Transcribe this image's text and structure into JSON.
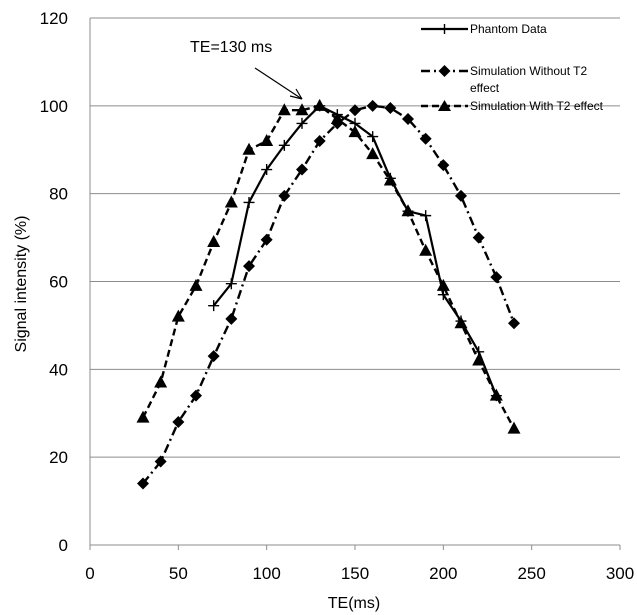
{
  "chart_data": {
    "type": "line",
    "title": "",
    "xlabel": "TE(ms)",
    "ylabel": "Signal intensity (%)",
    "xlim": [
      0,
      300
    ],
    "ylim": [
      0,
      120
    ],
    "xticks": [
      0,
      50,
      100,
      150,
      200,
      250,
      300
    ],
    "yticks": [
      0,
      20,
      40,
      60,
      80,
      100,
      120
    ],
    "grid": "horizontal",
    "legend_position": "top-right",
    "annotation": {
      "text": "TE=130  ms",
      "points_to": {
        "x": 130,
        "y": 100
      }
    },
    "series": [
      {
        "name": "Phantom Data",
        "marker": "plus",
        "line": "solid",
        "color": "#000000",
        "x": [
          70,
          80,
          90,
          100,
          110,
          120,
          130,
          140,
          150,
          160,
          170,
          180,
          190,
          200,
          210,
          220,
          230
        ],
        "y": [
          54.5,
          59.5,
          78,
          85.5,
          91,
          96,
          100,
          98,
          96,
          93,
          83.5,
          76,
          75,
          57,
          51,
          44,
          34
        ]
      },
      {
        "name": "Simulation Without T2 effect",
        "marker": "diamond",
        "line": "dashdot",
        "color": "#000000",
        "x": [
          30,
          40,
          50,
          60,
          70,
          80,
          90,
          100,
          110,
          120,
          130,
          140,
          150,
          160,
          170,
          180,
          190,
          200,
          210,
          220,
          230,
          240
        ],
        "y": [
          14,
          19,
          28,
          34,
          43,
          51.5,
          63.5,
          69.5,
          79.5,
          85.5,
          92,
          96,
          99,
          100,
          99.5,
          97,
          92.5,
          86.5,
          79.5,
          70,
          61,
          50.5
        ]
      },
      {
        "name": "Simulation With T2 effect",
        "marker": "triangle",
        "line": "dashed",
        "color": "#000000",
        "x": [
          30,
          40,
          50,
          60,
          70,
          80,
          90,
          100,
          110,
          120,
          130,
          140,
          150,
          160,
          170,
          180,
          190,
          200,
          210,
          220,
          230,
          240
        ],
        "y": [
          29,
          37,
          52,
          59,
          69,
          78,
          90,
          92,
          99,
          99,
          100,
          97,
          94,
          89,
          83,
          76,
          67,
          59,
          50.5,
          42,
          34,
          26.5
        ]
      }
    ]
  }
}
